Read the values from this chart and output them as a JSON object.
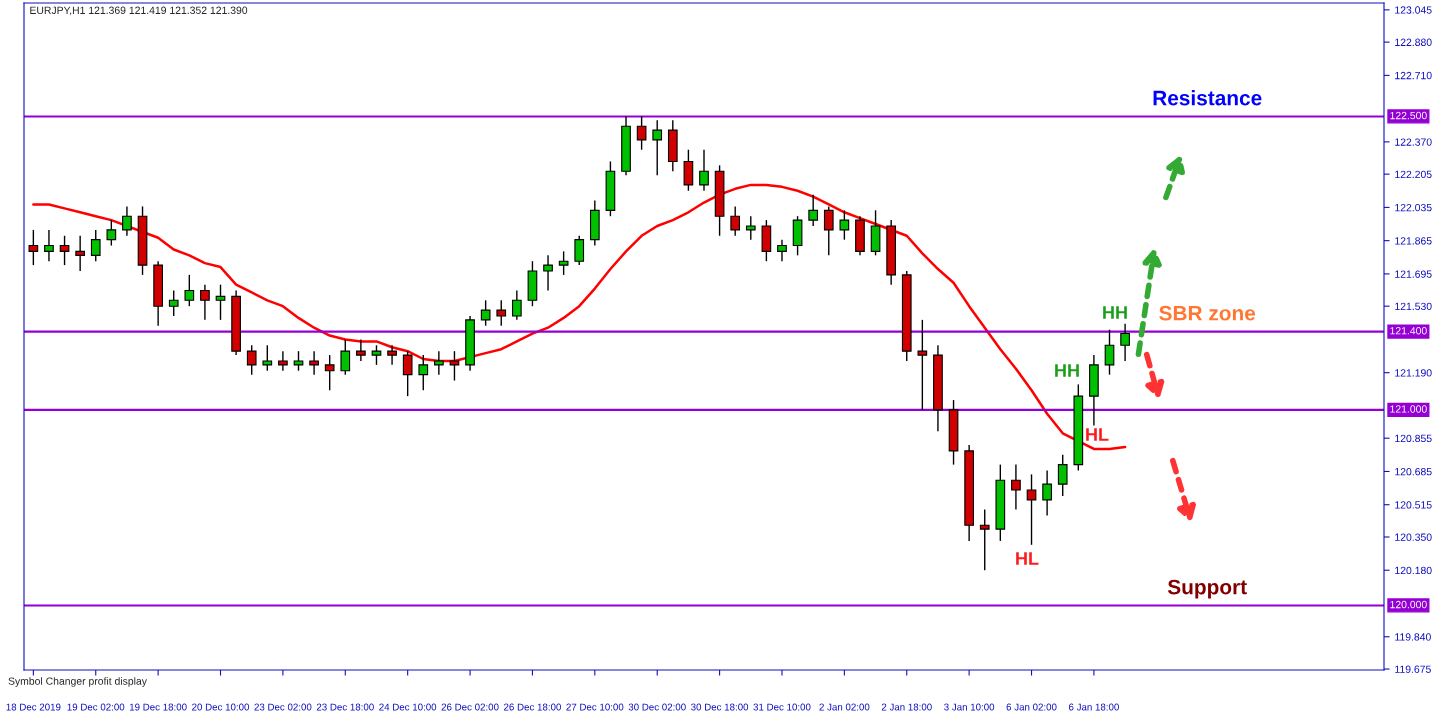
{
  "chart_data": {
    "type": "candlestick",
    "categories": [
      "18 Dec 2019",
      null,
      null,
      null,
      "19 Dec 02:00",
      null,
      null,
      null,
      "19 Dec 18:00",
      null,
      null,
      null,
      "20 Dec 10:00",
      null,
      null,
      null,
      "23 Dec 02:00",
      null,
      null,
      null,
      "23 Dec 18:00",
      null,
      null,
      null,
      "24 Dec 10:00",
      null,
      null,
      null,
      "26 Dec 02:00",
      null,
      null,
      null,
      "26 Dec 18:00",
      null,
      null,
      null,
      "27 Dec 10:00",
      null,
      null,
      null,
      "30 Dec 02:00",
      null,
      null,
      null,
      "30 Dec 18:00",
      null,
      null,
      null,
      "31 Dec 10:00",
      null,
      null,
      null,
      "2 Jan 02:00",
      null,
      null,
      null,
      "2 Jan 18:00",
      null,
      null,
      null,
      "3 Jan 10:00",
      null,
      null,
      null,
      "6 Jan 02:00",
      null,
      null,
      null,
      "6 Jan 18:00",
      null,
      null,
      null,
      null,
      null,
      null,
      null,
      null,
      null,
      null,
      null,
      null,
      null,
      null,
      null,
      null,
      null,
      null
    ],
    "ohlc": [
      [
        121.84,
        121.92,
        121.74,
        121.81
      ],
      [
        121.81,
        121.92,
        121.76,
        121.84
      ],
      [
        121.84,
        121.89,
        121.74,
        121.81
      ],
      [
        121.81,
        121.89,
        121.71,
        121.79
      ],
      [
        121.79,
        121.92,
        121.76,
        121.87
      ],
      [
        121.87,
        121.97,
        121.84,
        121.92
      ],
      [
        121.92,
        122.04,
        121.89,
        121.99
      ],
      [
        121.99,
        122.04,
        121.69,
        121.74
      ],
      [
        121.74,
        121.76,
        121.43,
        121.53
      ],
      [
        121.53,
        121.61,
        121.48,
        121.56
      ],
      [
        121.56,
        121.69,
        121.53,
        121.61
      ],
      [
        121.61,
        121.64,
        121.46,
        121.56
      ],
      [
        121.56,
        121.64,
        121.46,
        121.58
      ],
      [
        121.58,
        121.61,
        121.28,
        121.3
      ],
      [
        121.3,
        121.33,
        121.18,
        121.23
      ],
      [
        121.23,
        121.33,
        121.2,
        121.25
      ],
      [
        121.25,
        121.3,
        121.2,
        121.23
      ],
      [
        121.23,
        121.3,
        121.2,
        121.25
      ],
      [
        121.25,
        121.3,
        121.18,
        121.23
      ],
      [
        121.23,
        121.28,
        121.1,
        121.2
      ],
      [
        121.2,
        121.36,
        121.18,
        121.3
      ],
      [
        121.3,
        121.36,
        121.25,
        121.28
      ],
      [
        121.28,
        121.33,
        121.23,
        121.3
      ],
      [
        121.3,
        121.33,
        121.23,
        121.28
      ],
      [
        121.28,
        121.3,
        121.07,
        121.18
      ],
      [
        121.18,
        121.28,
        121.1,
        121.23
      ],
      [
        121.23,
        121.3,
        121.18,
        121.25
      ],
      [
        121.25,
        121.3,
        121.15,
        121.23
      ],
      [
        121.23,
        121.48,
        121.2,
        121.46
      ],
      [
        121.46,
        121.56,
        121.43,
        121.51
      ],
      [
        121.51,
        121.56,
        121.43,
        121.48
      ],
      [
        121.48,
        121.61,
        121.46,
        121.56
      ],
      [
        121.56,
        121.76,
        121.53,
        121.71
      ],
      [
        121.71,
        121.79,
        121.61,
        121.74
      ],
      [
        121.74,
        121.81,
        121.69,
        121.76
      ],
      [
        121.76,
        121.89,
        121.74,
        121.87
      ],
      [
        121.87,
        122.07,
        121.84,
        122.02
      ],
      [
        122.02,
        122.27,
        121.99,
        122.22
      ],
      [
        122.22,
        122.5,
        122.2,
        122.45
      ],
      [
        122.45,
        122.5,
        122.33,
        122.38
      ],
      [
        122.38,
        122.48,
        122.2,
        122.43
      ],
      [
        122.43,
        122.48,
        122.22,
        122.27
      ],
      [
        122.27,
        122.33,
        122.12,
        122.15
      ],
      [
        122.15,
        122.33,
        122.12,
        122.22
      ],
      [
        122.22,
        122.25,
        121.89,
        121.99
      ],
      [
        121.99,
        122.04,
        121.89,
        121.92
      ],
      [
        121.92,
        121.99,
        121.87,
        121.94
      ],
      [
        121.94,
        121.97,
        121.76,
        121.81
      ],
      [
        121.81,
        121.87,
        121.76,
        121.84
      ],
      [
        121.84,
        121.99,
        121.79,
        121.97
      ],
      [
        121.97,
        122.1,
        121.94,
        122.02
      ],
      [
        122.02,
        122.04,
        121.79,
        121.92
      ],
      [
        121.92,
        122.02,
        121.87,
        121.97
      ],
      [
        121.97,
        121.99,
        121.79,
        121.81
      ],
      [
        121.81,
        122.02,
        121.79,
        121.94
      ],
      [
        121.94,
        121.97,
        121.64,
        121.69
      ],
      [
        121.69,
        121.71,
        121.25,
        121.3
      ],
      [
        121.3,
        121.46,
        121.0,
        121.28
      ],
      [
        121.28,
        121.33,
        120.89,
        121.0
      ],
      [
        121.0,
        121.05,
        120.72,
        120.79
      ],
      [
        120.79,
        120.82,
        120.33,
        120.41
      ],
      [
        120.41,
        120.49,
        120.18,
        120.39
      ],
      [
        120.39,
        120.72,
        120.33,
        120.64
      ],
      [
        120.64,
        120.72,
        120.49,
        120.59
      ],
      [
        120.59,
        120.67,
        120.31,
        120.54
      ],
      [
        120.54,
        120.69,
        120.46,
        120.62
      ],
      [
        120.62,
        120.77,
        120.56,
        120.72
      ],
      [
        120.72,
        121.13,
        120.69,
        121.07
      ],
      [
        121.07,
        121.28,
        120.92,
        121.23
      ],
      [
        121.23,
        121.41,
        121.18,
        121.33
      ],
      [
        121.33,
        121.44,
        121.25,
        121.39
      ],
      null,
      null,
      null,
      null,
      null,
      null,
      null,
      null,
      null,
      null,
      null,
      null,
      null,
      null,
      null,
      null
    ],
    "series": [
      {
        "type": "line",
        "color": "#ff0000",
        "values": [
          122.05,
          122.05,
          122.03,
          122.01,
          121.99,
          121.97,
          null,
          null,
          121.88,
          121.82,
          121.79,
          121.75,
          121.73,
          121.64,
          121.6,
          121.56,
          121.53,
          121.47,
          121.42,
          121.38,
          121.36,
          121.35,
          121.35,
          121.32,
          121.3,
          121.26,
          121.25,
          121.25,
          null,
          121.29,
          121.31,
          121.35,
          121.39,
          121.42,
          121.47,
          121.53,
          121.62,
          121.72,
          121.81,
          121.89,
          121.94,
          121.97,
          122.01,
          122.06,
          122.1,
          122.13,
          122.15,
          122.15,
          122.14,
          122.12,
          122.09,
          122.05,
          122.01,
          121.98,
          121.95,
          null,
          121.89,
          121.8,
          121.72,
          121.65,
          121.53,
          121.42,
          121.31,
          121.21,
          121.1,
          120.98,
          120.88,
          null,
          120.8,
          120.8,
          120.81,
          null,
          null,
          null,
          null,
          null,
          null,
          null,
          null,
          null,
          null,
          null,
          null,
          null,
          null,
          null,
          null
        ]
      }
    ],
    "ylim": [
      119.67,
      123.08
    ],
    "yticks": [
      {
        "value": 123.045,
        "label": "123.045"
      },
      {
        "value": 122.88,
        "label": "122.880"
      },
      {
        "value": 122.71,
        "label": "122.710"
      },
      {
        "value": 122.37,
        "label": "122.370"
      },
      {
        "value": 122.205,
        "label": "122.205"
      },
      {
        "value": 122.035,
        "label": "122.035"
      },
      {
        "value": 121.865,
        "label": "121.865"
      },
      {
        "value": 121.695,
        "label": "121.695"
      },
      {
        "value": 121.53,
        "label": "121.530"
      },
      {
        "value": 121.19,
        "label": "121.190"
      },
      {
        "value": 120.855,
        "label": "120.855"
      },
      {
        "value": 120.685,
        "label": "120.685"
      },
      {
        "value": 120.515,
        "label": "120.515"
      },
      {
        "value": 120.35,
        "label": "120.350"
      },
      {
        "value": 120.18,
        "label": "120.180"
      },
      {
        "value": 119.84,
        "label": "119.840"
      },
      {
        "value": 119.675,
        "label": "119.675"
      }
    ],
    "ref_lines": [
      {
        "axis": "y",
        "value": 122.5,
        "label": "122.500",
        "color": "#9400d3"
      },
      {
        "axis": "y",
        "value": 121.4,
        "label": "121.400",
        "color": "#9400d3"
      },
      {
        "axis": "y",
        "value": 121.0,
        "label": "121.000",
        "color": "#9400d3"
      },
      {
        "axis": "y",
        "value": 120.0,
        "label": "120.000",
        "color": "#9400d3"
      }
    ],
    "annotations": [
      "EURJPY,H1 121.369 121.419 121.352 121.390",
      "Symbol Changer profit display",
      "HH",
      "HH",
      "HL",
      "HL",
      {
        "text": "Resistance",
        "y": 122.5
      },
      {
        "text": "SBR zone",
        "y": 121.4
      },
      {
        "text": "Support",
        "y": 120.0
      }
    ],
    "grid": false
  }
}
